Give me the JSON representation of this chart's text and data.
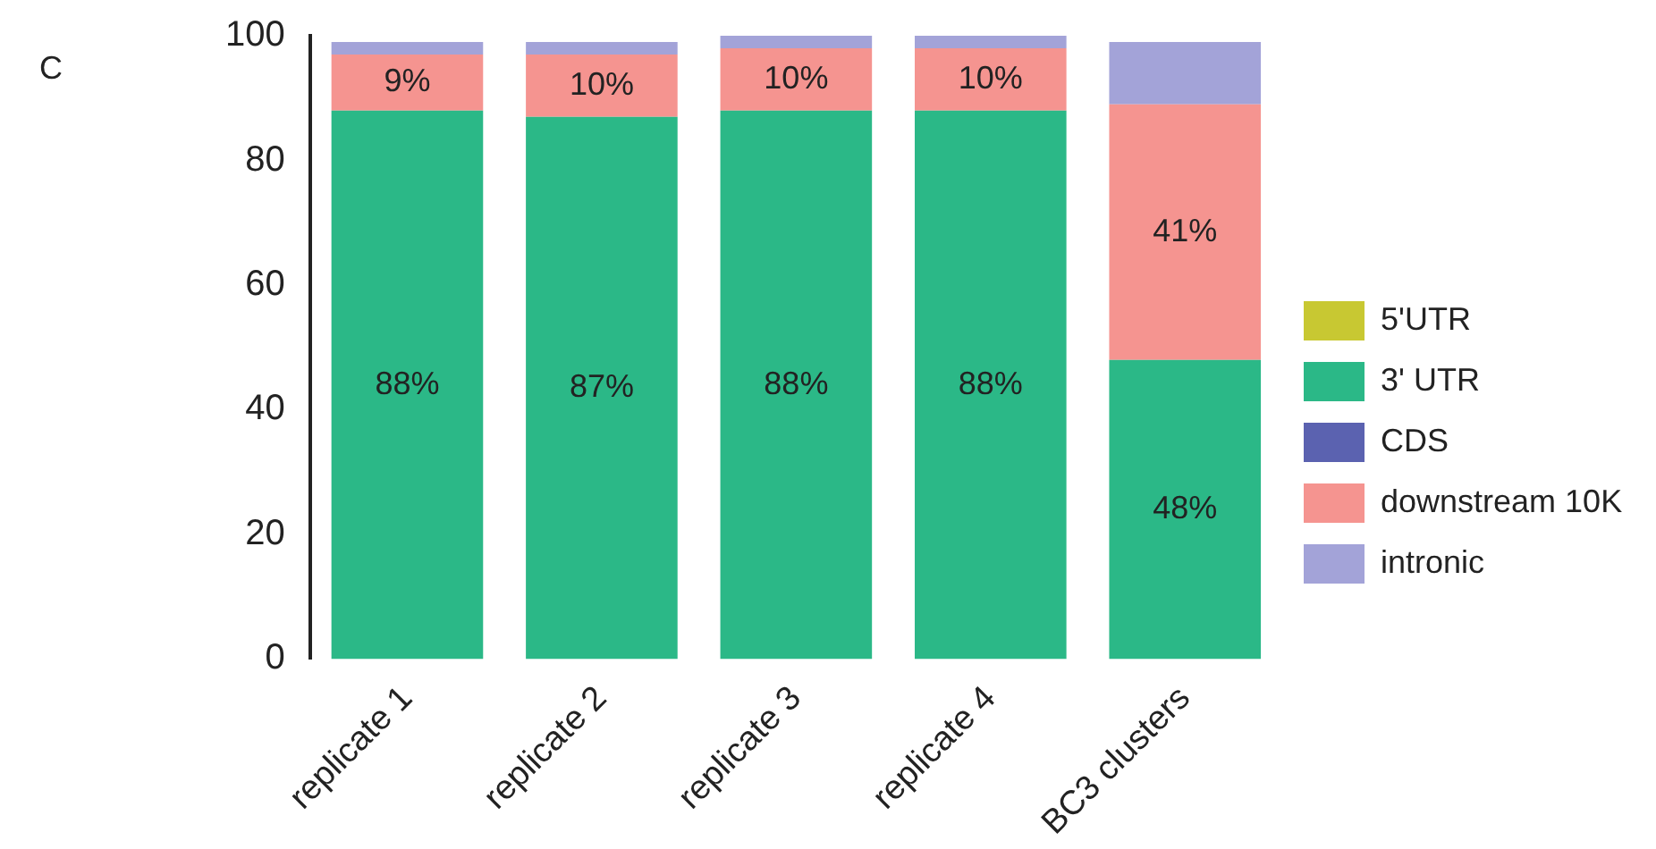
{
  "chart_data": {
    "type": "bar",
    "stacked": true,
    "categories": [
      "replicate 1",
      "replicate 2",
      "replicate 3",
      "replicate 4",
      "BC3 clusters"
    ],
    "series": [
      {
        "name": "5'UTR",
        "color": "#c8c832",
        "values": [
          0,
          0,
          0,
          0,
          0
        ]
      },
      {
        "name": "3' UTR",
        "color": "#2bb887",
        "values": [
          88,
          87,
          88,
          88,
          48
        ],
        "value_labels": [
          "88%",
          "87%",
          "88%",
          "88%",
          "48%"
        ]
      },
      {
        "name": "CDS",
        "color": "#5b62b0",
        "values": [
          0,
          0,
          0,
          0,
          0
        ]
      },
      {
        "name": "downstream 10K",
        "color": "#f59490",
        "values": [
          9,
          10,
          10,
          10,
          41
        ],
        "value_labels": [
          "9%",
          "10%",
          "10%",
          "10%",
          "41%"
        ]
      },
      {
        "name": "intronic",
        "color": "#a3a3d8",
        "values": [
          2,
          2,
          2,
          2,
          10
        ]
      }
    ],
    "ylim": [
      0,
      100
    ],
    "yticks": [
      0,
      20,
      40,
      60,
      80,
      100
    ],
    "grid": false,
    "legend": "right",
    "annotations": [
      "C"
    ]
  }
}
